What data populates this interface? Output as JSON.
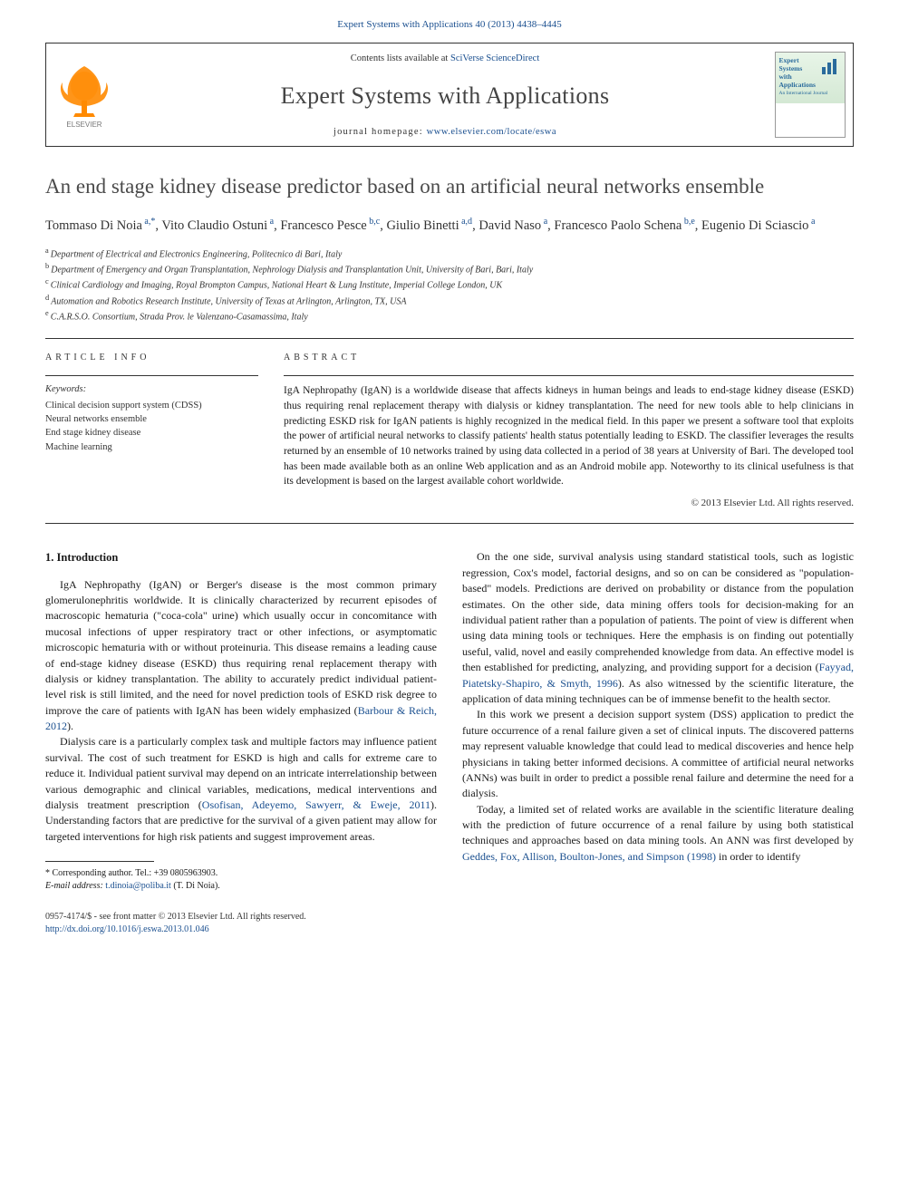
{
  "citation_line": "Expert Systems with Applications 40 (2013) 4438–4445",
  "header": {
    "contents_prefix": "Contents lists available at ",
    "contents_link": "SciVerse ScienceDirect",
    "journal_name": "Expert Systems with Applications",
    "homepage_prefix": "journal homepage: ",
    "homepage_url": "www.elsevier.com/locate/eswa",
    "elsevier_logo_color": "#ff8a00",
    "cover": {
      "line1": "Expert",
      "line2": "Systems",
      "line3": "with",
      "line4": "Applications",
      "subtitle": "An International Journal",
      "bg_top": "#e8f5e8",
      "accent": "#2a6b9c"
    }
  },
  "title": "An end stage kidney disease predictor based on an artificial neural networks ensemble",
  "authors_html": "Tommaso Di Noia|a,*|, Vito Claudio Ostuni|a|, Francesco Pesce|b,c|, Giulio Binetti|a,d|, David Naso|a|, Francesco Paolo Schena|b,e|, Eugenio Di Sciascio|a|",
  "affiliations": [
    {
      "sup": "a",
      "text": "Department of Electrical and Electronics Engineering, Politecnico di Bari, Italy"
    },
    {
      "sup": "b",
      "text": "Department of Emergency and Organ Transplantation, Nephrology Dialysis and Transplantation Unit, University of Bari, Bari, Italy"
    },
    {
      "sup": "c",
      "text": "Clinical Cardiology and Imaging, Royal Brompton Campus, National Heart & Lung Institute, Imperial College London, UK"
    },
    {
      "sup": "d",
      "text": "Automation and Robotics Research Institute, University of Texas at Arlington, Arlington, TX, USA"
    },
    {
      "sup": "e",
      "text": "C.A.R.S.O. Consortium, Strada Prov. le Valenzano-Casamassima, Italy"
    }
  ],
  "info_label": "ARTICLE INFO",
  "abstract_label": "ABSTRACT",
  "keywords_label": "Keywords:",
  "keywords": [
    "Clinical decision support system (CDSS)",
    "Neural networks ensemble",
    "End stage kidney disease",
    "Machine learning"
  ],
  "abstract": "IgA Nephropathy (IgAN) is a worldwide disease that affects kidneys in human beings and leads to end-stage kidney disease (ESKD) thus requiring renal replacement therapy with dialysis or kidney transplantation. The need for new tools able to help clinicians in predicting ESKD risk for IgAN patients is highly recognized in the medical field. In this paper we present a software tool that exploits the power of artificial neural networks to classify patients' health status potentially leading to ESKD. The classifier leverages the results returned by an ensemble of 10 networks trained by using data collected in a period of 38 years at University of Bari. The developed tool has been made available both as an online Web application and as an Android mobile app. Noteworthy to its clinical usefulness is that its development is based on the largest available cohort worldwide.",
  "copyright": "© 2013 Elsevier Ltd. All rights reserved.",
  "section1_heading": "1. Introduction",
  "body": {
    "p1": "IgA Nephropathy (IgAN) or Berger's disease is the most common primary glomerulonephritis worldwide. It is clinically characterized by recurrent episodes of macroscopic hematuria (\"coca-cola\" urine) which usually occur in concomitance with mucosal infections of upper respiratory tract or other infections, or asymptomatic microscopic hematuria with or without proteinuria. This disease remains a leading cause of end-stage kidney disease (ESKD) thus requiring renal replacement therapy with dialysis or kidney transplantation. The ability to accurately predict individual patient-level risk is still limited, and the need for novel prediction tools of ESKD risk degree to improve the care of patients with IgAN has been widely emphasized (",
    "p1_ref": "Barbour & Reich, 2012",
    "p1_end": ").",
    "p2": "Dialysis care is a particularly complex task and multiple factors may influence patient survival. The cost of such treatment for ESKD is high and calls for extreme care to reduce it. Individual patient survival may depend on an intricate interrelationship between various demographic and clinical variables, medications, medical interventions and dialysis treatment prescription (",
    "p2_ref": "Osofisan, Adeyemo, Sawyerr, & Eweje, 2011",
    "p2_end": "). Understanding factors that are predictive for the survival of a given patient may allow for targeted interventions for high risk patients and suggest improvement areas.",
    "p3": "On the one side, survival analysis using standard statistical tools, such as logistic regression, Cox's model, factorial designs, and so on can be considered as \"population-based\" models. Predictions are derived on probability or distance from the population estimates. On the other side, data mining offers tools for decision-making for an individual patient rather than a population of patients. The point of view is different when using data mining tools or techniques. Here the emphasis is on finding out potentially useful, valid, novel and easily comprehended knowledge from data. An effective model is then established for predicting, analyzing, and providing support for a decision (",
    "p3_ref": "Fayyad, Piatetsky-Shapiro, & Smyth, 1996",
    "p3_end": "). As also witnessed by the scientific literature, the application of data mining techniques can be of immense benefit to the health sector.",
    "p4": "In this work we present a decision support system (DSS) application to predict the future occurrence of a renal failure given a set of clinical inputs. The discovered patterns may represent valuable knowledge that could lead to medical discoveries and hence help physicians in taking better informed decisions. A committee of artificial neural networks (ANNs) was built in order to predict a possible renal failure and determine the need for a dialysis.",
    "p5a": "Today, a limited set of related works are available in the scientific literature dealing with the prediction of future occurrence of a renal failure by using both statistical techniques and approaches based on data mining tools. An ANN was first developed by ",
    "p5_ref": "Geddes, Fox, Allison, Boulton-Jones, and Simpson (1998)",
    "p5b": " in order to identify"
  },
  "footnotes": {
    "corresponding": "* Corresponding author. Tel.: +39 0805963903.",
    "email_label": "E-mail address: ",
    "email": "t.dinoia@poliba.it",
    "email_suffix": " (T. Di Noia)."
  },
  "footer": {
    "issn_line": "0957-4174/$ - see front matter © 2013 Elsevier Ltd. All rights reserved.",
    "doi": "http://dx.doi.org/10.1016/j.eswa.2013.01.046"
  },
  "colors": {
    "link": "#1a4f8f",
    "text": "#1a1a1a",
    "title": "#4a4a4a",
    "rule": "#333333"
  }
}
